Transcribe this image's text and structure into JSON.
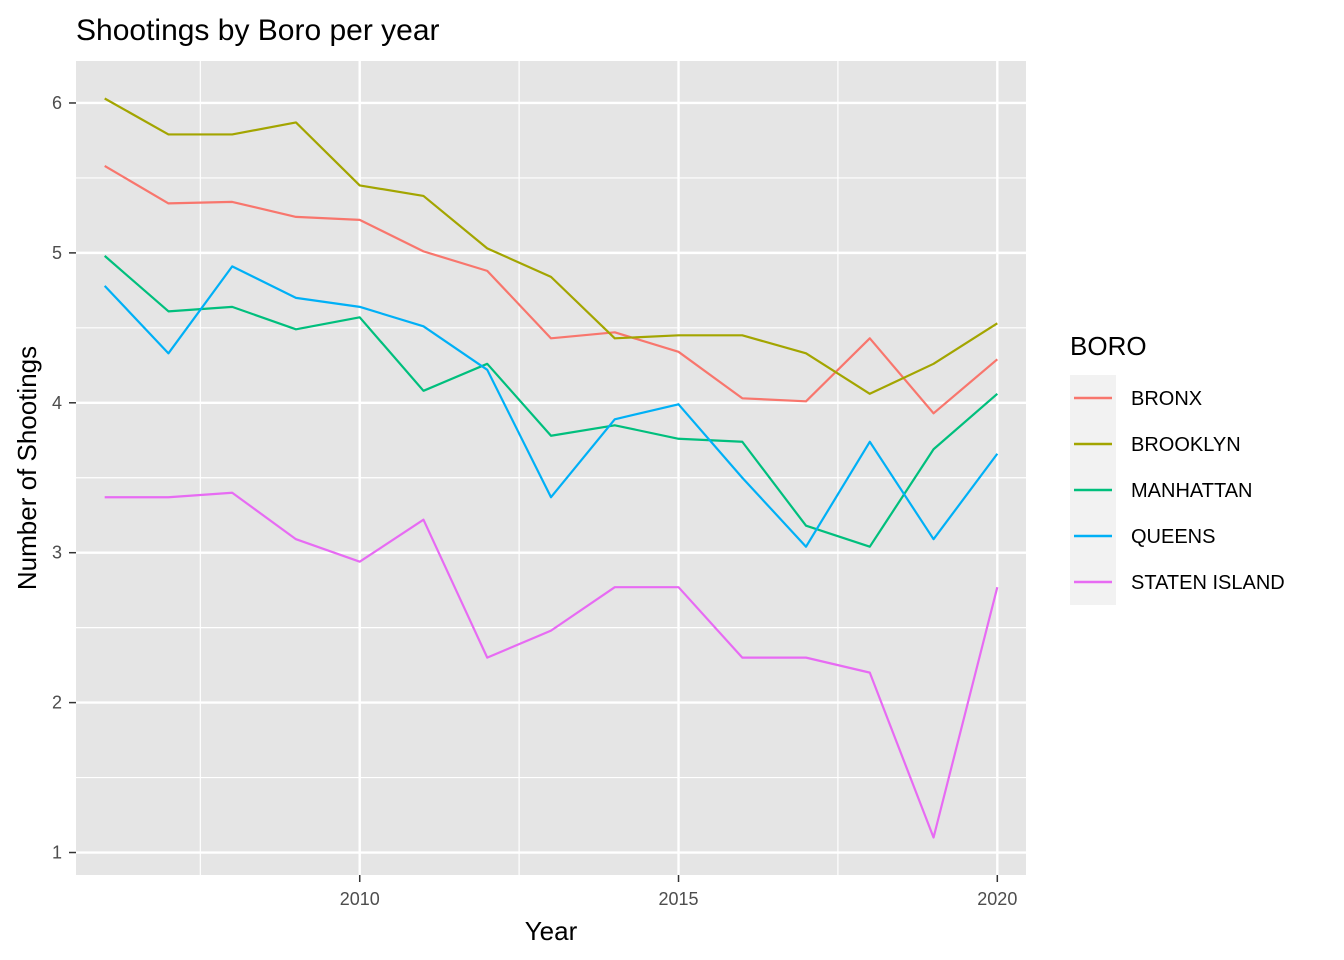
{
  "chart_data": {
    "type": "line",
    "title": "Shootings by Boro per year",
    "xlabel": "Year",
    "ylabel": "Number of Shootings",
    "x": [
      2006,
      2007,
      2008,
      2009,
      2010,
      2011,
      2012,
      2013,
      2014,
      2015,
      2016,
      2017,
      2018,
      2019,
      2020
    ],
    "xlim": [
      2005.55,
      2020.45
    ],
    "ylim": [
      0.85,
      6.28
    ],
    "x_ticks": [
      2010,
      2015,
      2020
    ],
    "x_tick_labels": [
      "2010",
      "2015",
      "2020"
    ],
    "y_ticks": [
      1,
      2,
      3,
      4,
      5,
      6
    ],
    "y_tick_labels": [
      "1",
      "2",
      "3",
      "4",
      "5",
      "6"
    ],
    "grid": true,
    "background_color": "#e5e5e5",
    "grid_color": "#ffffff",
    "legend": {
      "title": "BORO",
      "placement": "right"
    },
    "series": [
      {
        "name": "BRONX",
        "color": "#f8766d",
        "values": [
          5.58,
          5.33,
          5.34,
          5.24,
          5.22,
          5.01,
          4.88,
          4.43,
          4.47,
          4.34,
          4.03,
          4.01,
          4.43,
          3.93,
          4.29
        ]
      },
      {
        "name": "BROOKLYN",
        "color": "#a3a500",
        "values": [
          6.03,
          5.79,
          5.79,
          5.87,
          5.45,
          5.38,
          5.03,
          4.84,
          4.43,
          4.45,
          4.45,
          4.33,
          4.06,
          4.26,
          4.53
        ]
      },
      {
        "name": "MANHATTAN",
        "color": "#00bf7d",
        "values": [
          4.98,
          4.61,
          4.64,
          4.49,
          4.57,
          4.08,
          4.26,
          3.78,
          3.85,
          3.76,
          3.74,
          3.18,
          3.04,
          3.69,
          4.06
        ]
      },
      {
        "name": "QUEENS",
        "color": "#00b0f6",
        "values": [
          4.78,
          4.33,
          4.91,
          4.7,
          4.64,
          4.51,
          4.22,
          3.37,
          3.89,
          3.99,
          3.5,
          3.04,
          3.74,
          3.09,
          3.66
        ]
      },
      {
        "name": "STATEN ISLAND",
        "color": "#e76bf3",
        "values": [
          3.37,
          3.37,
          3.4,
          3.09,
          2.94,
          3.22,
          2.3,
          2.48,
          2.77,
          2.77,
          2.3,
          2.3,
          2.2,
          1.1,
          2.77
        ]
      }
    ]
  }
}
